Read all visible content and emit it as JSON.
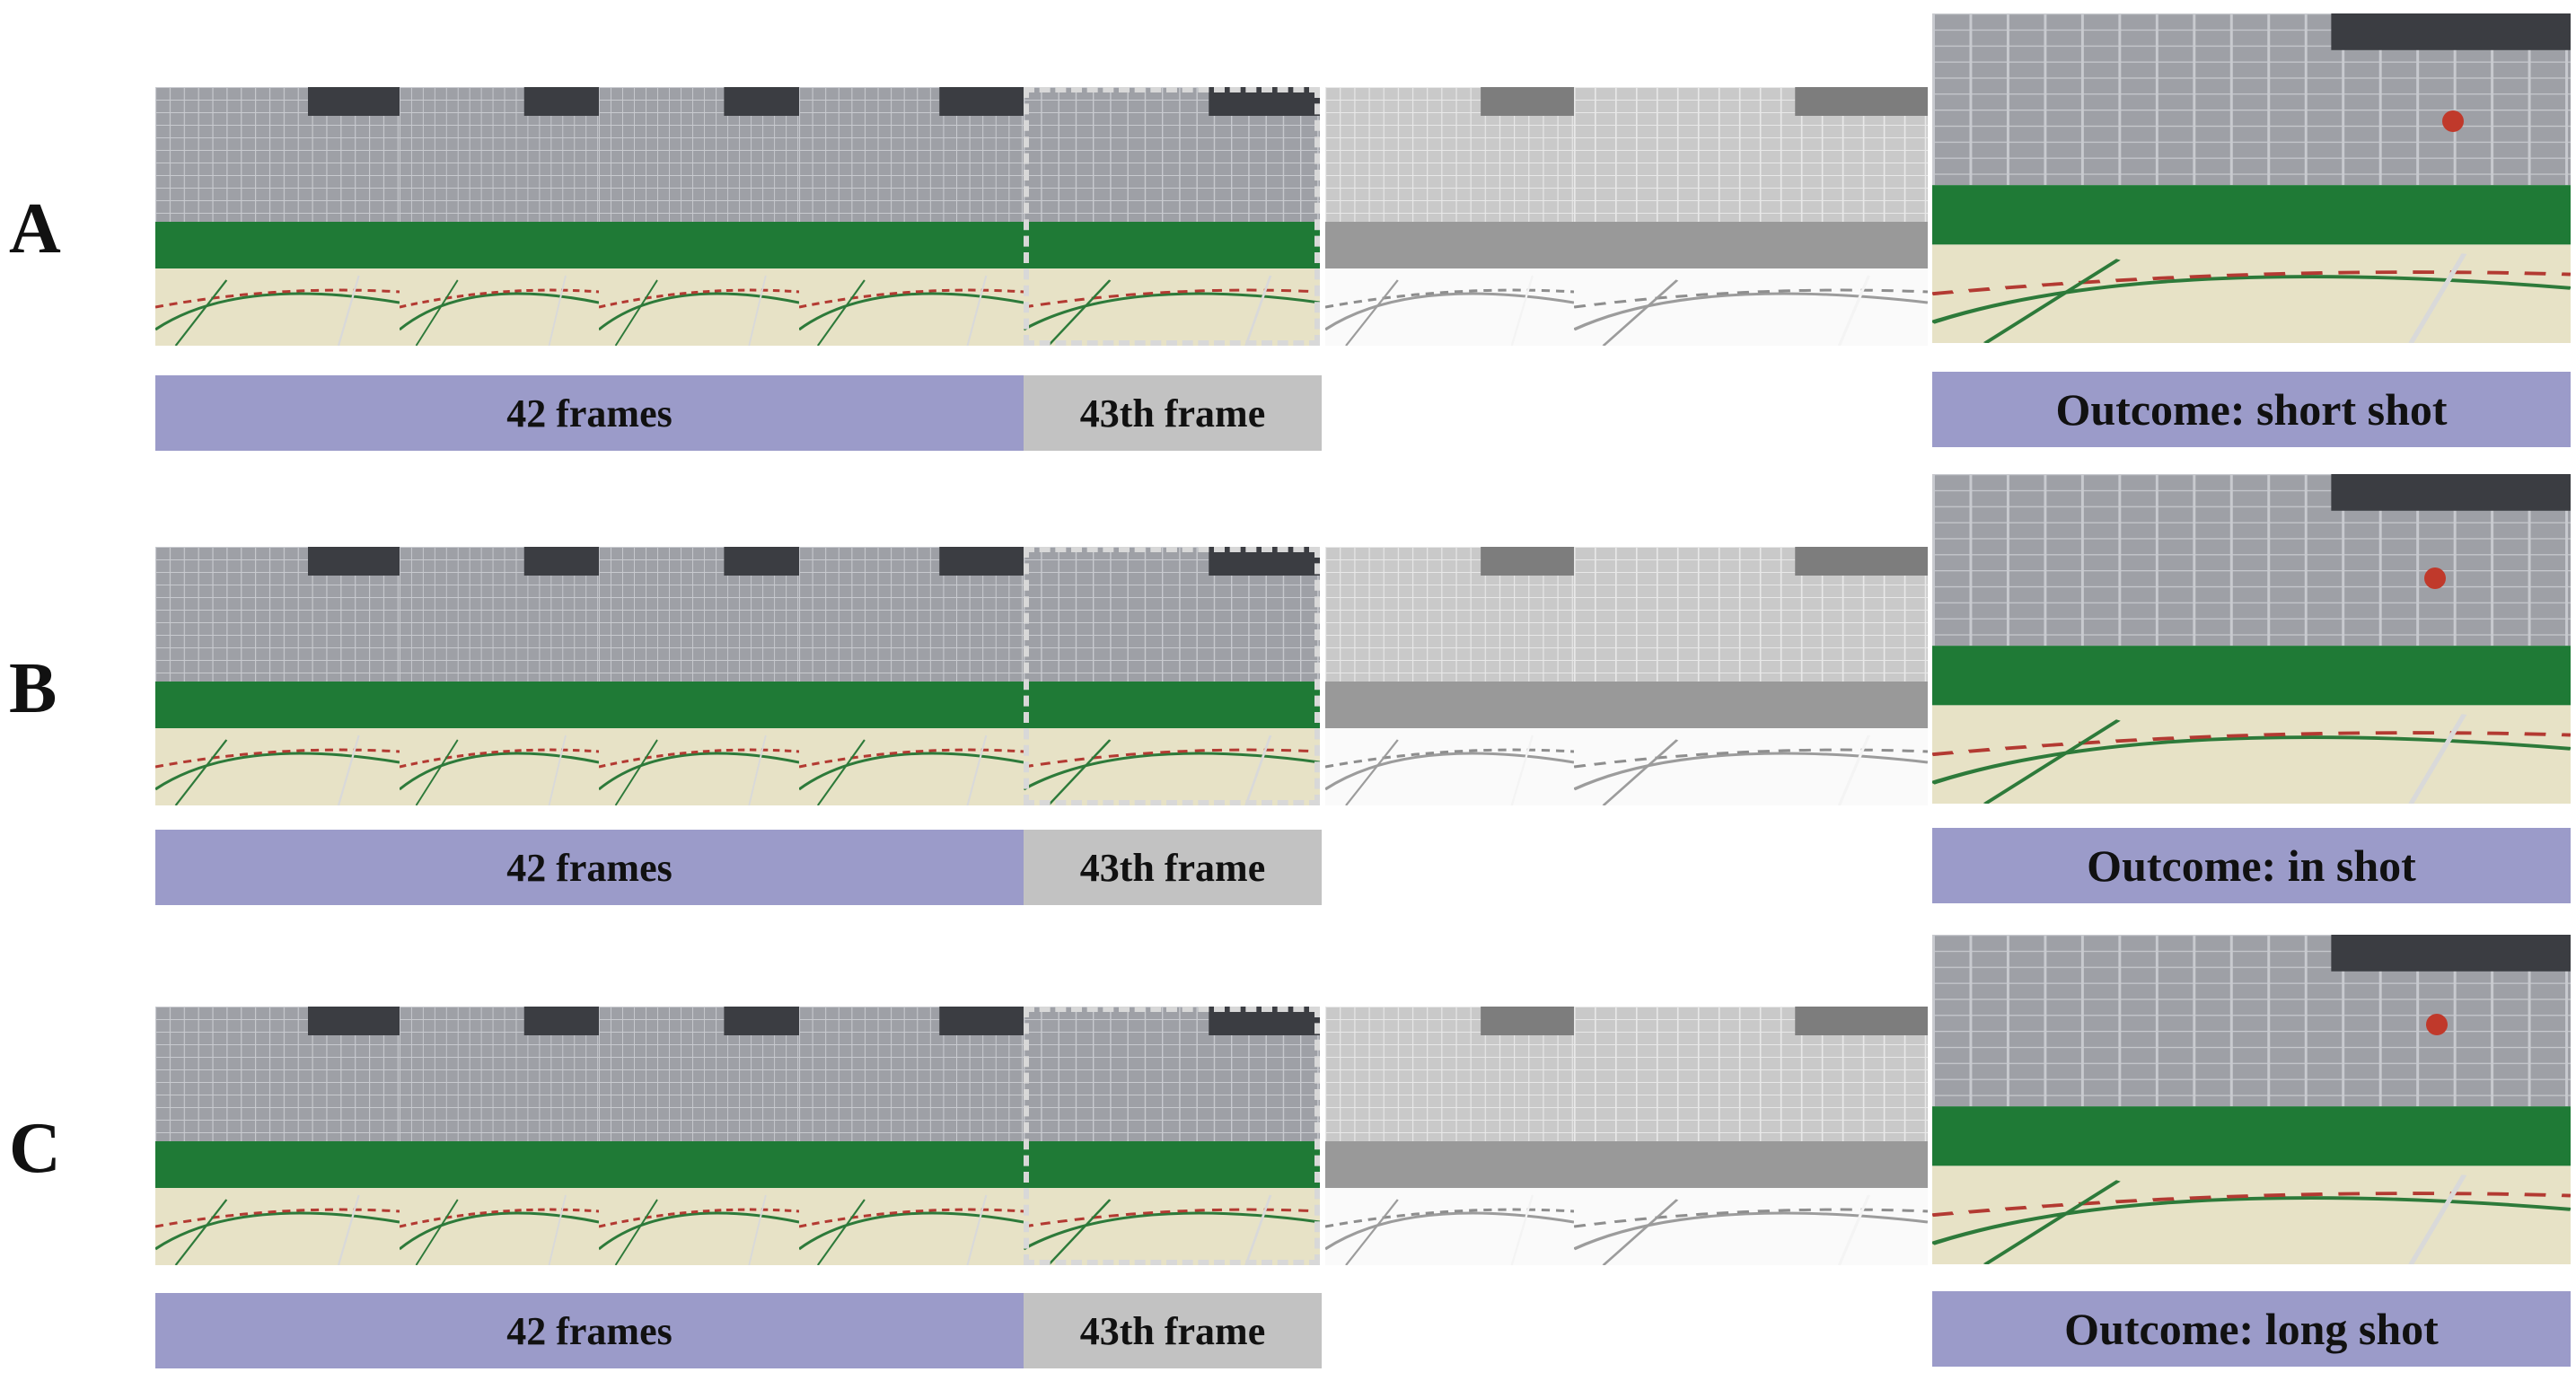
{
  "rows": [
    {
      "letter": "A",
      "frames_label": "42 frames",
      "frame43_label": "43th frame",
      "outcome_label": "Outcome: short shot"
    },
    {
      "letter": "B",
      "frames_label": "42 frames",
      "frame43_label": "43th frame",
      "outcome_label": "Outcome: in shot"
    },
    {
      "letter": "C",
      "frames_label": "42 frames",
      "frame43_label": "43th frame",
      "outcome_label": "Outcome: long shot"
    }
  ],
  "colors": {
    "frames_bar": "#9b9bc9",
    "frame43_bar": "#c2c2c2",
    "outcome_bar": "#9b9bc9",
    "wall_green": "#1f7a36",
    "court_floor": "#e7e2c6",
    "wall_upper": "#9a9aa0"
  }
}
